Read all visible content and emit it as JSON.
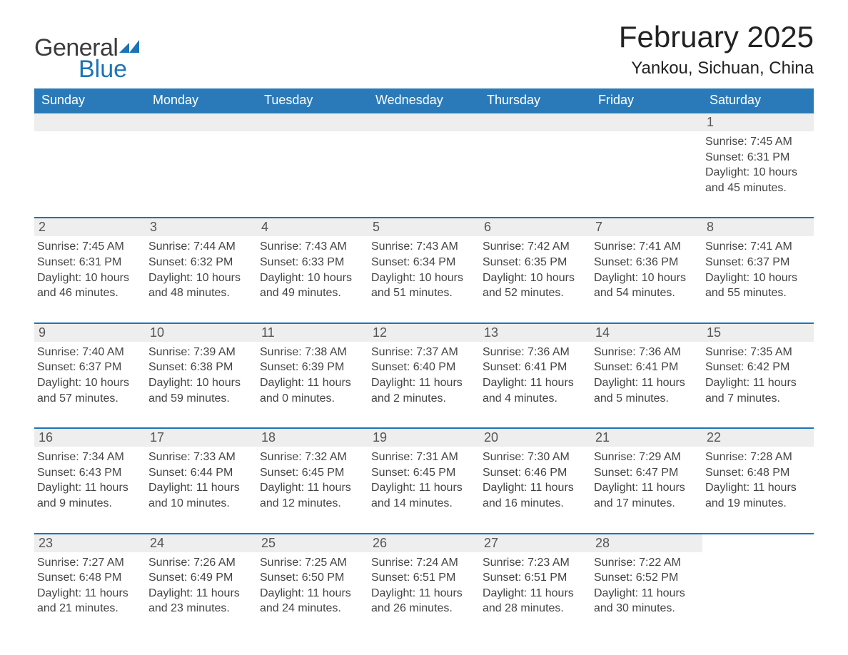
{
  "logo": {
    "general": "General",
    "blue": "Blue"
  },
  "title": "February 2025",
  "subtitle": "Yankou, Sichuan, China",
  "weekdays": [
    "Sunday",
    "Monday",
    "Tuesday",
    "Wednesday",
    "Thursday",
    "Friday",
    "Saturday"
  ],
  "colors": {
    "header_blue": "#2a7ab9",
    "accent_blue": "#1c74b8",
    "day_bar": "#eeeeee",
    "background": "#ffffff",
    "text": "#333333"
  },
  "weeks": [
    [
      null,
      null,
      null,
      null,
      null,
      null,
      {
        "n": "1",
        "sunrise": "Sunrise: 7:45 AM",
        "sunset": "Sunset: 6:31 PM",
        "daylight": "Daylight: 10 hours and 45 minutes."
      }
    ],
    [
      {
        "n": "2",
        "sunrise": "Sunrise: 7:45 AM",
        "sunset": "Sunset: 6:31 PM",
        "daylight": "Daylight: 10 hours and 46 minutes."
      },
      {
        "n": "3",
        "sunrise": "Sunrise: 7:44 AM",
        "sunset": "Sunset: 6:32 PM",
        "daylight": "Daylight: 10 hours and 48 minutes."
      },
      {
        "n": "4",
        "sunrise": "Sunrise: 7:43 AM",
        "sunset": "Sunset: 6:33 PM",
        "daylight": "Daylight: 10 hours and 49 minutes."
      },
      {
        "n": "5",
        "sunrise": "Sunrise: 7:43 AM",
        "sunset": "Sunset: 6:34 PM",
        "daylight": "Daylight: 10 hours and 51 minutes."
      },
      {
        "n": "6",
        "sunrise": "Sunrise: 7:42 AM",
        "sunset": "Sunset: 6:35 PM",
        "daylight": "Daylight: 10 hours and 52 minutes."
      },
      {
        "n": "7",
        "sunrise": "Sunrise: 7:41 AM",
        "sunset": "Sunset: 6:36 PM",
        "daylight": "Daylight: 10 hours and 54 minutes."
      },
      {
        "n": "8",
        "sunrise": "Sunrise: 7:41 AM",
        "sunset": "Sunset: 6:37 PM",
        "daylight": "Daylight: 10 hours and 55 minutes."
      }
    ],
    [
      {
        "n": "9",
        "sunrise": "Sunrise: 7:40 AM",
        "sunset": "Sunset: 6:37 PM",
        "daylight": "Daylight: 10 hours and 57 minutes."
      },
      {
        "n": "10",
        "sunrise": "Sunrise: 7:39 AM",
        "sunset": "Sunset: 6:38 PM",
        "daylight": "Daylight: 10 hours and 59 minutes."
      },
      {
        "n": "11",
        "sunrise": "Sunrise: 7:38 AM",
        "sunset": "Sunset: 6:39 PM",
        "daylight": "Daylight: 11 hours and 0 minutes."
      },
      {
        "n": "12",
        "sunrise": "Sunrise: 7:37 AM",
        "sunset": "Sunset: 6:40 PM",
        "daylight": "Daylight: 11 hours and 2 minutes."
      },
      {
        "n": "13",
        "sunrise": "Sunrise: 7:36 AM",
        "sunset": "Sunset: 6:41 PM",
        "daylight": "Daylight: 11 hours and 4 minutes."
      },
      {
        "n": "14",
        "sunrise": "Sunrise: 7:36 AM",
        "sunset": "Sunset: 6:41 PM",
        "daylight": "Daylight: 11 hours and 5 minutes."
      },
      {
        "n": "15",
        "sunrise": "Sunrise: 7:35 AM",
        "sunset": "Sunset: 6:42 PM",
        "daylight": "Daylight: 11 hours and 7 minutes."
      }
    ],
    [
      {
        "n": "16",
        "sunrise": "Sunrise: 7:34 AM",
        "sunset": "Sunset: 6:43 PM",
        "daylight": "Daylight: 11 hours and 9 minutes."
      },
      {
        "n": "17",
        "sunrise": "Sunrise: 7:33 AM",
        "sunset": "Sunset: 6:44 PM",
        "daylight": "Daylight: 11 hours and 10 minutes."
      },
      {
        "n": "18",
        "sunrise": "Sunrise: 7:32 AM",
        "sunset": "Sunset: 6:45 PM",
        "daylight": "Daylight: 11 hours and 12 minutes."
      },
      {
        "n": "19",
        "sunrise": "Sunrise: 7:31 AM",
        "sunset": "Sunset: 6:45 PM",
        "daylight": "Daylight: 11 hours and 14 minutes."
      },
      {
        "n": "20",
        "sunrise": "Sunrise: 7:30 AM",
        "sunset": "Sunset: 6:46 PM",
        "daylight": "Daylight: 11 hours and 16 minutes."
      },
      {
        "n": "21",
        "sunrise": "Sunrise: 7:29 AM",
        "sunset": "Sunset: 6:47 PM",
        "daylight": "Daylight: 11 hours and 17 minutes."
      },
      {
        "n": "22",
        "sunrise": "Sunrise: 7:28 AM",
        "sunset": "Sunset: 6:48 PM",
        "daylight": "Daylight: 11 hours and 19 minutes."
      }
    ],
    [
      {
        "n": "23",
        "sunrise": "Sunrise: 7:27 AM",
        "sunset": "Sunset: 6:48 PM",
        "daylight": "Daylight: 11 hours and 21 minutes."
      },
      {
        "n": "24",
        "sunrise": "Sunrise: 7:26 AM",
        "sunset": "Sunset: 6:49 PM",
        "daylight": "Daylight: 11 hours and 23 minutes."
      },
      {
        "n": "25",
        "sunrise": "Sunrise: 7:25 AM",
        "sunset": "Sunset: 6:50 PM",
        "daylight": "Daylight: 11 hours and 24 minutes."
      },
      {
        "n": "26",
        "sunrise": "Sunrise: 7:24 AM",
        "sunset": "Sunset: 6:51 PM",
        "daylight": "Daylight: 11 hours and 26 minutes."
      },
      {
        "n": "27",
        "sunrise": "Sunrise: 7:23 AM",
        "sunset": "Sunset: 6:51 PM",
        "daylight": "Daylight: 11 hours and 28 minutes."
      },
      {
        "n": "28",
        "sunrise": "Sunrise: 7:22 AM",
        "sunset": "Sunset: 6:52 PM",
        "daylight": "Daylight: 11 hours and 30 minutes."
      },
      null
    ]
  ]
}
